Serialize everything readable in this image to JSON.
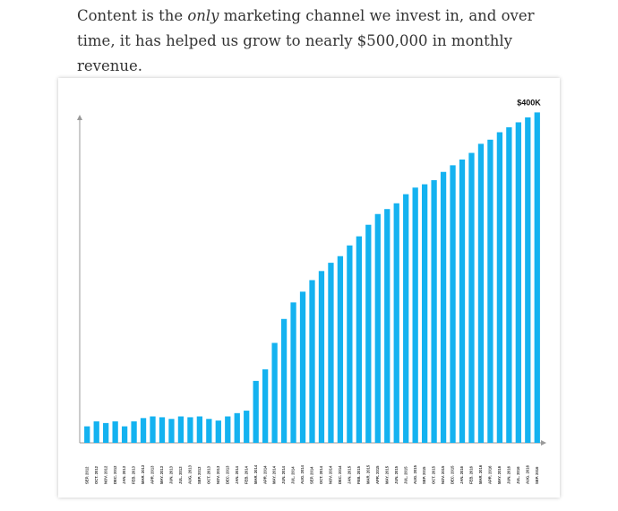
{
  "paragraph": [
    "Content is the ",
    "only",
    " marketing channel we invest in, and over time, it has helped us grow to nearly $500,000 in monthly revenue."
  ],
  "chart_data": {
    "type": "bar",
    "annotation": "$400K",
    "categories": [
      "SEP. 2012",
      "OCT. 2012",
      "NOV. 2012",
      "DEC. 2012",
      "JAN. 2013",
      "FEB. 2013",
      "MAR. 2013",
      "APR. 2013",
      "MAY. 2013",
      "JUN. 2013",
      "JUL. 2013",
      "AUG. 2013",
      "SEP. 2013",
      "OCT. 2013",
      "NOV. 2013",
      "DEC. 2013",
      "JAN. 2014",
      "FEB. 2014",
      "MAR. 2014",
      "APR. 2014",
      "MAY. 2014",
      "JUN. 2014",
      "JUL. 2014",
      "AUG. 2014",
      "SEP. 2014",
      "OCT. 2014",
      "NOV. 2014",
      "DEC. 2014",
      "JAN. 2015",
      "FEB. 2015",
      "MAR. 2015",
      "APR. 2015",
      "MAY. 2015",
      "JUN. 2015",
      "JUL. 2015",
      "AUG. 2015",
      "SEP. 2015",
      "OCT. 2015",
      "NOV. 2015",
      "DEC. 2015",
      "JAN. 2016",
      "FEB. 2016",
      "MAR. 2016",
      "APR. 2016",
      "MAY. 2016",
      "JUN. 2016",
      "JUL. 2016",
      "AUG. 2016",
      "SEP. 2016"
    ],
    "values": [
      20,
      26,
      24,
      26,
      20,
      26,
      30,
      32,
      31,
      29,
      32,
      31,
      32,
      29,
      27,
      32,
      36,
      39,
      75,
      89,
      121,
      150,
      170,
      183,
      197,
      208,
      218,
      226,
      239,
      250,
      264,
      277,
      283,
      290,
      301,
      309,
      313,
      318,
      328,
      336,
      343,
      351,
      362,
      367,
      376,
      382,
      388,
      394,
      400
    ],
    "color": "#14b2f0",
    "ylim": [
      0,
      395
    ]
  }
}
